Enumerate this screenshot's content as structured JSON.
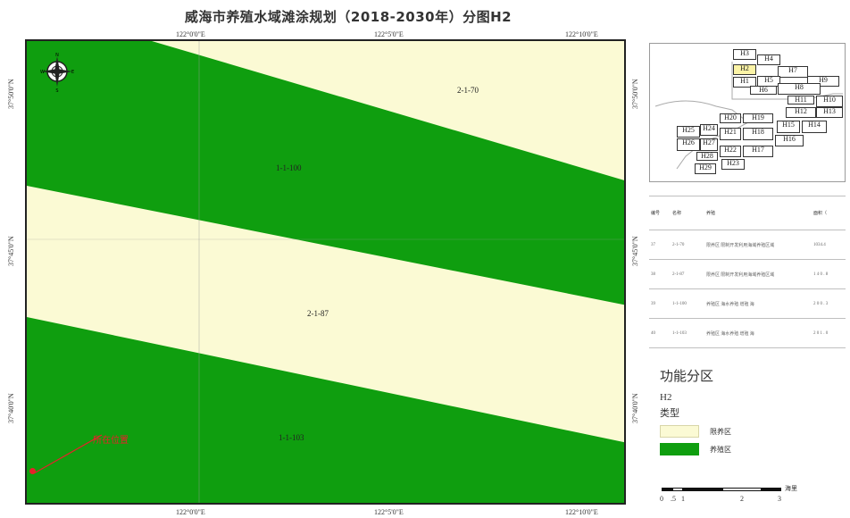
{
  "title": "威海市养殖水域滩涂规划（2018-2030年）分图H2",
  "map": {
    "top_coords": [
      "122°0'0\"E",
      "122°5'0\"E",
      "122°10'0\"E"
    ],
    "bottom_coords": [
      "122°0'0\"E",
      "122°5'0\"E",
      "122°10'0\"E"
    ],
    "left_coords": [
      "37°50'0\"N",
      "37°45'0\"N",
      "37°40'0\"N"
    ],
    "right_coords": [
      "37°50'0\"N",
      "37°45'0\"N",
      "37°40'0\"N"
    ],
    "zones": [
      "2-1-70",
      "1-1-100",
      "2-1-87",
      "1-1-103"
    ],
    "compass_letters": {
      "n": "N",
      "w": "W",
      "e": "E",
      "s": "S"
    },
    "location_label": "所在位置",
    "colors": {
      "limited_zone": "#fbfad4",
      "farming_zone": "#0f9e0f",
      "location_marker": "#e8202a"
    }
  },
  "index_map": {
    "highlighted": "H2",
    "cells": [
      "H3",
      "H4",
      "H2",
      "H7",
      "H1",
      "H5",
      "H9",
      "H6",
      "H8",
      "H11",
      "H10",
      "H12",
      "H13",
      "H20",
      "H19",
      "H15",
      "H14",
      "H25",
      "H24",
      "H21",
      "H18",
      "H16",
      "H26",
      "H27",
      "H22",
      "H17",
      "H28",
      "H23",
      "H29"
    ]
  },
  "info_table": {
    "headers": [
      "编号",
      "名称",
      "养殖",
      "面积（"
    ],
    "rows": [
      [
        "37",
        "2-1-70",
        "限养区 限制开发利用海域养殖区域",
        "1034.4"
      ],
      [
        "38",
        "2-1-87",
        "限养区 限制开发利用海域养殖区域",
        "1 4 0 . 8"
      ],
      [
        "39",
        "1-1-100",
        "养殖区 海水养殖 增殖 海",
        "2 0 0 . 3"
      ],
      [
        "40",
        "1-1-103",
        "养殖区 海水养殖 增殖 海",
        "2 0 1 . 0"
      ]
    ]
  },
  "legend": {
    "title": "功能分区",
    "subtitle": "H2",
    "class_label": "类型",
    "items": [
      {
        "label": "限养区",
        "color": "#fbfad4"
      },
      {
        "label": "养殖区",
        "color": "#0f9e0f"
      }
    ]
  },
  "scale_bar": {
    "ticks": [
      "0",
      ".5",
      "1",
      "2",
      "3"
    ],
    "unit": "海里"
  }
}
